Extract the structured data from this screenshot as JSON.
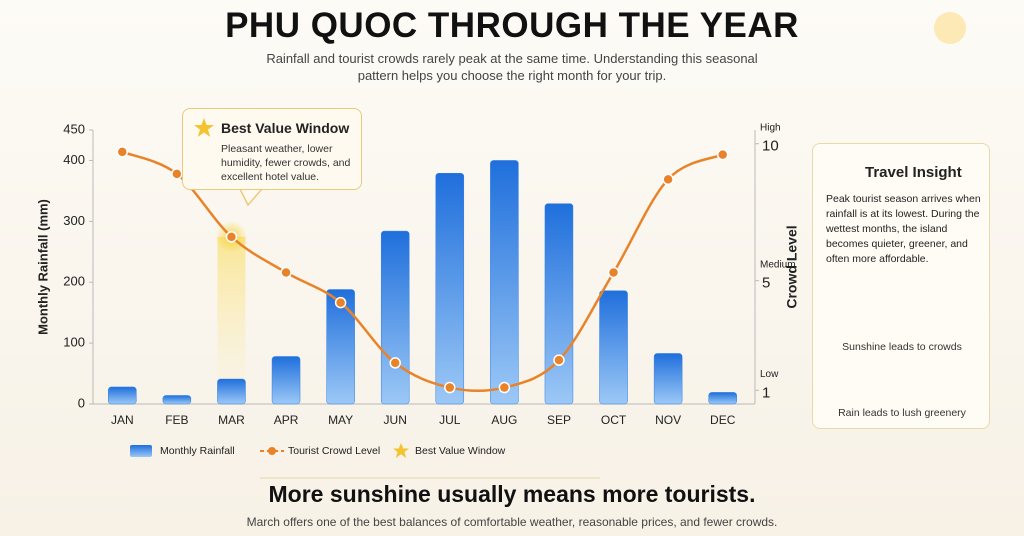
{
  "header": {
    "title": "PHU QUOC THROUGH THE YEAR",
    "subtitle": "Rainfall and tourist crowds rarely peak at the same time. Understanding this seasonal pattern helps you choose the right month for your trip."
  },
  "chart_data": {
    "type": "bar",
    "categories": [
      "JAN",
      "FEB",
      "MAR",
      "APR",
      "MAY",
      "JUN",
      "JUL",
      "AUG",
      "SEP",
      "OCT",
      "NOV",
      "DEC"
    ],
    "series": [
      {
        "name": "Monthly Rainfall",
        "type": "bar",
        "color": "#2f7fe3",
        "values": [
          28,
          14,
          41,
          78,
          188,
          284,
          379,
          400,
          329,
          186,
          83,
          19
        ]
      },
      {
        "name": "Tourist Crowd Level",
        "type": "line",
        "axis": "y2",
        "color": "#e8832a",
        "values": [
          9.7,
          8.9,
          6.6,
          5.3,
          4.2,
          2.0,
          1.1,
          1.1,
          2.1,
          5.3,
          8.7,
          9.6
        ]
      }
    ],
    "ylabel": "Monthly Rainfall (mm)",
    "y2label": "Crowd Level",
    "ylim": [
      0,
      450
    ],
    "yticks": [
      0,
      100,
      200,
      300,
      400,
      450
    ],
    "y2lim": [
      0.5,
      10.5
    ],
    "y2ticks": [
      1,
      5,
      10
    ],
    "y2tick_captions": [
      "Low",
      "Medium",
      "High"
    ],
    "highlight": {
      "name": "Best Value Window",
      "category": "MAR",
      "color": "#f4c430"
    },
    "grid": false
  },
  "annotation": {
    "title": "Best Value Window",
    "text": "Pleasant weather, lower humidity, fewer crowds, and excellent hotel value."
  },
  "insight": {
    "title": "Travel Insight",
    "text": "Peak tourist season arrives when rainfall is at its lowest. During the wettest months, the island becomes quieter, greener, and often more affordable.",
    "rows": [
      "Sunshine leads to crowds",
      "Rain leads to lush greenery"
    ]
  },
  "footer": {
    "headline": "More sunshine usually means more tourists.",
    "note": "March offers one of the best balances of comfortable weather, reasonable prices, and fewer crowds."
  }
}
